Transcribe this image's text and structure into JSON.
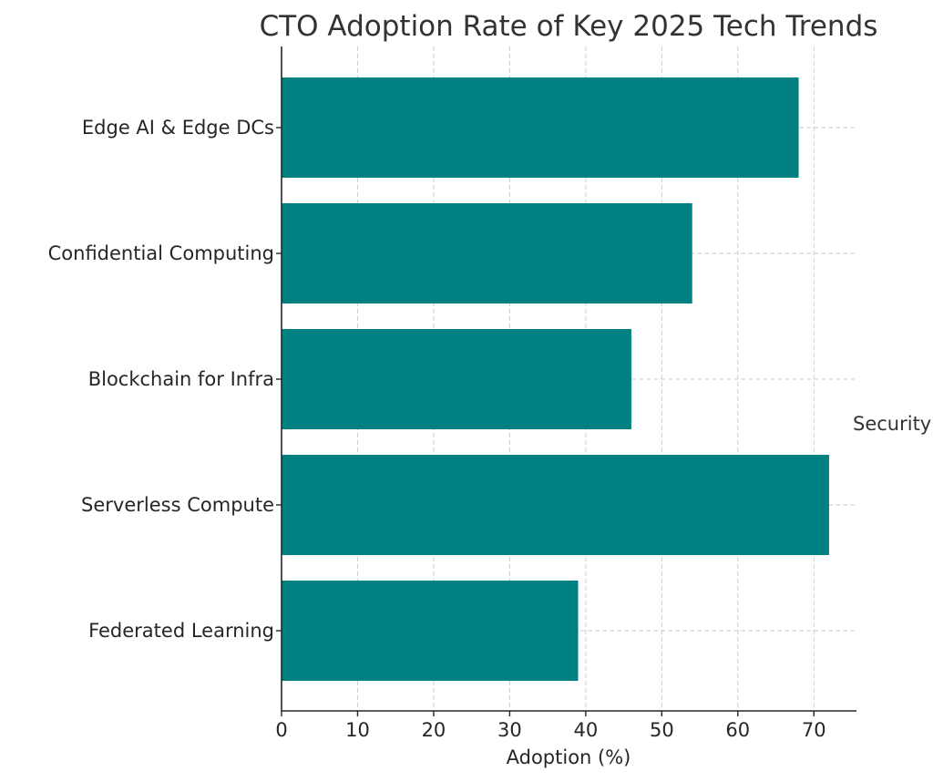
{
  "chart_data": {
    "type": "bar",
    "orientation": "horizontal",
    "title": "CTO Adoption Rate of Key 2025 Tech Trends",
    "xlabel": "Adoption (%)",
    "ylabel": "",
    "categories": [
      "Edge AI & Edge DCs",
      "Confidential Computing",
      "Blockchain for Infra",
      "Serverless Compute",
      "Federated Learning"
    ],
    "values": [
      68,
      54,
      46,
      72,
      39
    ],
    "xlim": [
      0,
      75.6
    ],
    "xticks": [
      0,
      10,
      20,
      30,
      40,
      50,
      60,
      70
    ],
    "grid": true,
    "bar_color": "#008080",
    "annotation": "Security"
  }
}
